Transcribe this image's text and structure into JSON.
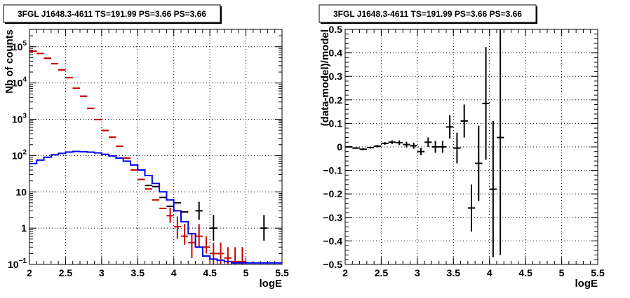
{
  "chart_data": [
    {
      "type": "line",
      "title": "3FGL J1648.3-4611 TS=191.99 PS=3.66 PS=3.66",
      "xlabel": "logE",
      "ylabel": "Nb of counts",
      "xlim": [
        2,
        5.5
      ],
      "ylim": [
        0.1,
        300000
      ],
      "yscale": "log",
      "grid": true,
      "x_ticks": [
        "2",
        "2.5",
        "3",
        "3.5",
        "4",
        "4.5",
        "5",
        "5.5"
      ],
      "y_ticks": [
        {
          "value": 0.1,
          "base": "10",
          "exp": "−1"
        },
        {
          "value": 1,
          "base": "1",
          "exp": ""
        },
        {
          "value": 10,
          "base": "10",
          "exp": ""
        },
        {
          "value": 100,
          "base": "10",
          "exp": "2"
        },
        {
          "value": 1000,
          "base": "10",
          "exp": "3"
        },
        {
          "value": 10000,
          "base": "10",
          "exp": "4"
        },
        {
          "value": 100000,
          "base": "10",
          "exp": "5"
        }
      ],
      "colors": {
        "data": "#000000",
        "model": "#cc0000",
        "component": "#0000ee"
      },
      "bin_width": 0.1,
      "series": [
        {
          "role": "data",
          "style": "errorbar",
          "x": [
            2.05,
            2.15,
            2.25,
            2.35,
            2.45,
            2.55,
            2.65,
            2.75,
            2.85,
            2.95,
            3.05,
            3.15,
            3.25,
            3.35,
            3.45,
            3.55,
            3.65,
            3.75,
            3.85,
            3.95,
            4.05,
            4.15,
            4.35,
            4.55,
            5.25
          ],
          "y": [
            75000,
            65000,
            48000,
            34000,
            23000,
            14000,
            7200,
            4300,
            2000,
            980,
            490,
            320,
            180,
            85,
            40,
            22,
            15,
            14,
            7,
            4,
            5,
            2.8,
            3,
            1,
            1
          ],
          "err_lo": [
            0,
            0,
            0,
            0,
            0,
            0,
            0,
            0,
            0,
            0,
            0,
            0,
            0,
            0,
            0,
            0,
            0,
            0,
            0,
            0,
            0,
            0,
            1.3,
            0.55,
            0.55
          ],
          "err_hi": [
            0,
            0,
            0,
            0,
            0,
            0,
            0,
            0,
            0,
            0,
            0,
            0,
            0,
            0,
            0,
            0,
            0,
            0,
            0,
            0,
            0,
            0,
            2.3,
            1.3,
            1.3
          ]
        },
        {
          "role": "model",
          "style": "errorbar",
          "x": [
            2.05,
            2.15,
            2.25,
            2.35,
            2.45,
            2.55,
            2.65,
            2.75,
            2.85,
            2.95,
            3.05,
            3.15,
            3.25,
            3.35,
            3.45,
            3.55,
            3.65,
            3.75,
            3.85,
            3.95,
            4.05,
            4.15,
            4.25,
            4.35,
            4.45,
            4.55,
            4.65,
            4.75,
            4.85,
            4.95
          ],
          "y": [
            75000,
            65000,
            48000,
            34000,
            23000,
            14000,
            7200,
            4300,
            2000,
            980,
            490,
            320,
            180,
            85,
            40,
            22,
            12,
            6,
            3.5,
            2.2,
            1.1,
            0.6,
            0.4,
            0.6,
            0.3,
            0.2,
            0.2,
            0.15,
            0.12,
            0.12
          ],
          "err_lo": [
            0,
            0,
            0,
            0,
            0,
            0,
            0,
            0,
            0,
            0,
            0,
            0,
            0,
            0,
            0,
            0,
            0,
            0,
            0,
            0.8,
            0.6,
            0.25,
            0.25,
            0.3,
            0.1,
            0.1,
            0.1,
            0.05,
            0.02,
            0.02
          ],
          "err_hi": [
            0,
            0,
            0,
            0,
            0,
            0,
            0,
            0,
            0,
            0,
            0,
            0,
            0,
            0,
            0,
            0,
            0,
            0,
            0,
            1.5,
            1.0,
            0.7,
            0.3,
            0.7,
            0.3,
            0.2,
            0.2,
            0.15,
            0.18,
            0.18
          ]
        },
        {
          "role": "component",
          "style": "step",
          "x": [
            2.05,
            2.15,
            2.25,
            2.35,
            2.45,
            2.55,
            2.65,
            2.75,
            2.85,
            2.95,
            3.05,
            3.15,
            3.25,
            3.35,
            3.45,
            3.55,
            3.65,
            3.75,
            3.85,
            3.95,
            4.05,
            4.15,
            4.25,
            4.35,
            4.45,
            4.55,
            4.65,
            4.75,
            4.85,
            4.95,
            5.05,
            5.15,
            5.25,
            5.35,
            5.45
          ],
          "y": [
            60,
            75,
            90,
            105,
            115,
            125,
            130,
            128,
            124,
            118,
            108,
            98,
            85,
            70,
            55,
            40,
            28,
            17,
            10,
            6,
            3,
            1.5,
            0.7,
            0.3,
            0.17,
            0.14,
            0.13,
            0.12,
            0.11,
            0.11,
            0.11,
            0.11,
            0.11,
            0.11,
            0.11
          ]
        }
      ]
    },
    {
      "type": "scatter",
      "title": "3FGL J1648.3-4611 TS=191.99 PS=3.66 PS=3.66",
      "xlabel": "logE",
      "ylabel": "(data-model)/model",
      "xlim": [
        2,
        5.5
      ],
      "ylim": [
        -0.5,
        0.5
      ],
      "yscale": "linear",
      "grid": true,
      "x_ticks": [
        "2",
        "2.5",
        "3",
        "3.5",
        "4",
        "4.5",
        "5",
        "5.5"
      ],
      "y_ticks": [
        "−0.5",
        "−0.4",
        "−0.3",
        "−0.2",
        "−0.1",
        "0",
        "0.1",
        "0.2",
        "0.3",
        "0.4",
        "0.5"
      ],
      "bin_width": 0.1,
      "series": [
        {
          "role": "residual",
          "style": "errorbar",
          "x": [
            2.05,
            2.15,
            2.25,
            2.35,
            2.45,
            2.55,
            2.65,
            2.75,
            2.85,
            2.95,
            3.05,
            3.15,
            3.25,
            3.35,
            3.45,
            3.55,
            3.65,
            3.75,
            3.85,
            3.95,
            4.05,
            4.15
          ],
          "y": [
            0.0,
            -0.005,
            -0.01,
            -0.003,
            0.003,
            0.015,
            0.02,
            0.018,
            0.01,
            0.005,
            -0.02,
            0.02,
            0.0,
            0.0,
            0.085,
            -0.005,
            0.11,
            -0.26,
            -0.07,
            0.185,
            -0.18,
            0.04
          ],
          "err": [
            0.003,
            0.003,
            0.004,
            0.004,
            0.005,
            0.006,
            0.008,
            0.01,
            0.012,
            0.013,
            0.015,
            0.02,
            0.025,
            0.025,
            0.05,
            0.065,
            0.07,
            0.1,
            0.16,
            0.24,
            0.29,
            0.5
          ]
        }
      ]
    }
  ]
}
